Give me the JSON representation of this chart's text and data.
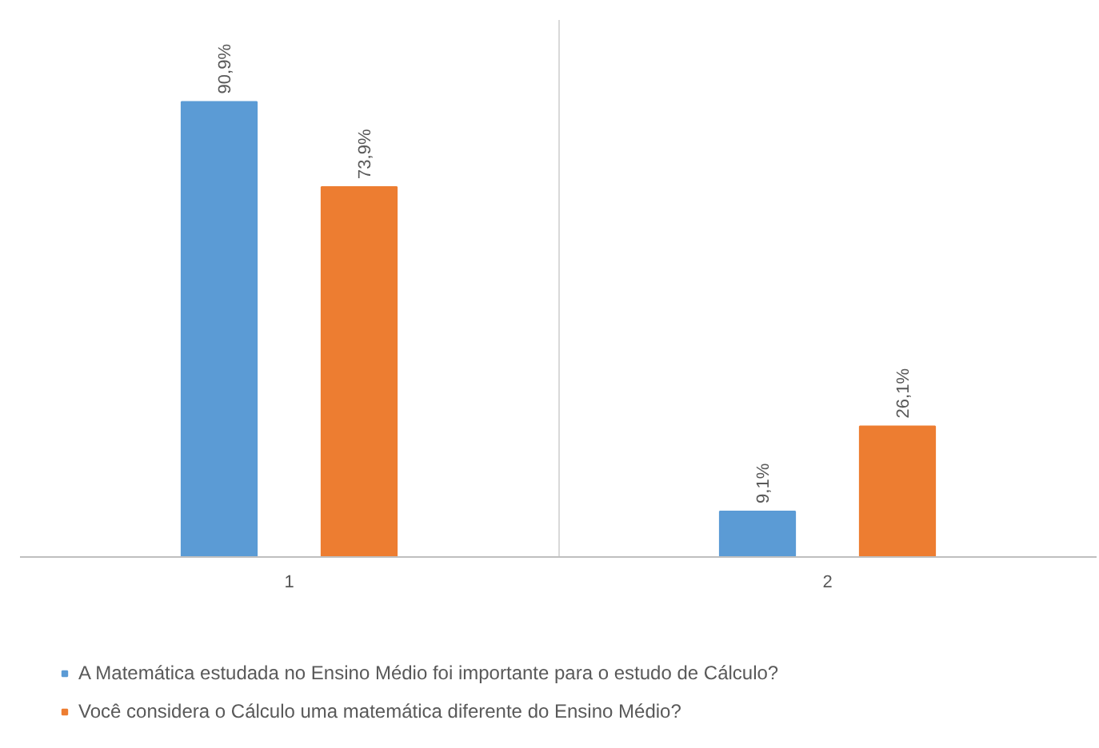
{
  "chart_data": {
    "type": "bar",
    "categories": [
      "1",
      "2"
    ],
    "series": [
      {
        "name": "A Matemática estudada no Ensino Médio foi importante para o estudo de Cálculo?",
        "color": "#5b9bd5",
        "values": [
          90.9,
          9.1
        ],
        "value_labels": [
          "90,9%",
          "9,1%"
        ]
      },
      {
        "name": "Você considera o Cálculo uma matemática diferente do Ensino Médio?",
        "color": "#ed7d31",
        "values": [
          73.9,
          26.1
        ],
        "value_labels": [
          "73,9%",
          "26,1%"
        ]
      }
    ],
    "grid": "x",
    "legend": "bottom",
    "tick_labels": "x"
  }
}
